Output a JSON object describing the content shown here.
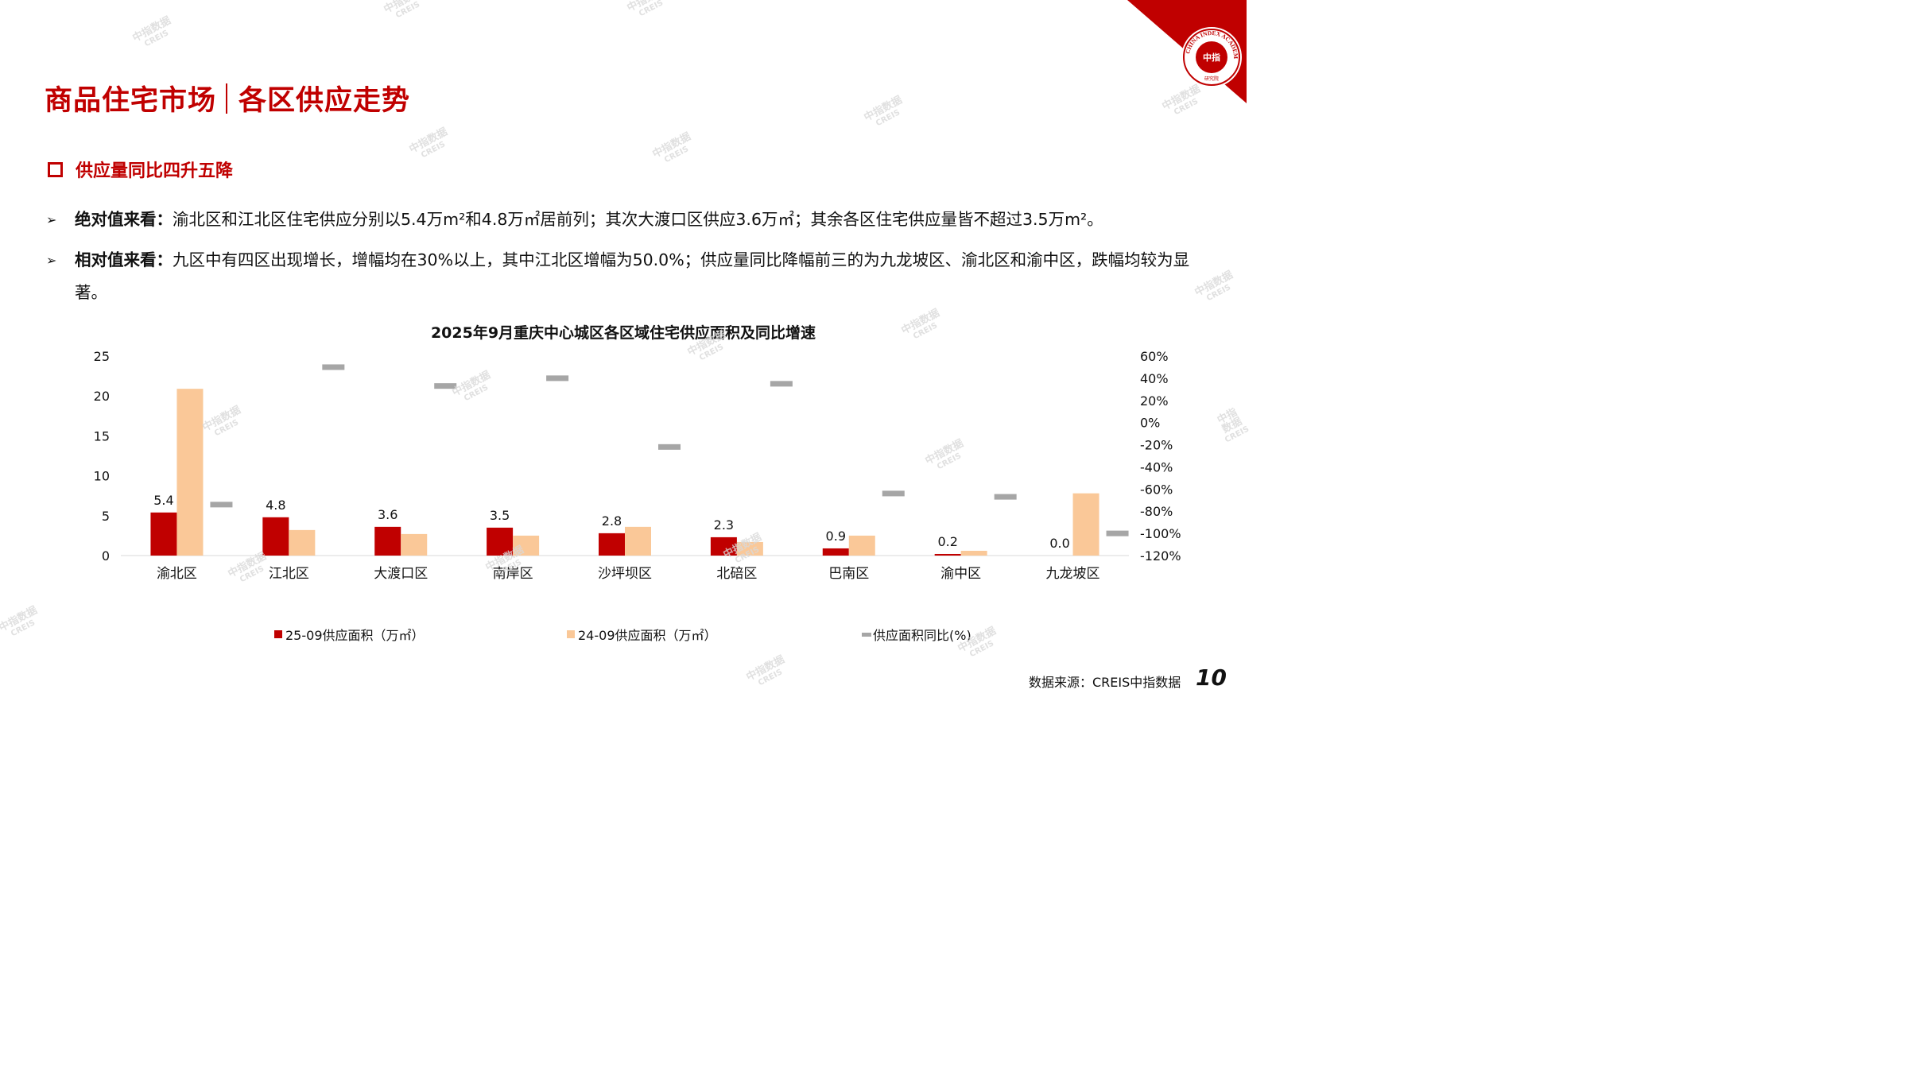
{
  "header": {
    "title_part1": "商品住宅市场",
    "title_part2": "各区供应走势",
    "logo_arc_text": "CHINA INDEX ACADEMY",
    "logo_center_text": "中指",
    "logo_bottom_text": "研究院"
  },
  "section": {
    "subtitle": "供应量同比四升五降"
  },
  "bullets": [
    {
      "label": "绝对值来看：",
      "text": "渝北区和江北区住宅供应分别以5.4万m²和4.8万㎡居前列；其次大渡口区供应3.6万㎡；其余各区住宅供应量皆不超过3.5万m²。"
    },
    {
      "label": "相对值来看：",
      "text": "九区中有四区出现增长，增幅均在30%以上，其中江北区增幅为50.0%；供应量同比降幅前三的为九龙坡区、渝北区和渝中区，跌幅均较为显著。"
    }
  ],
  "chart_data": {
    "type": "bar",
    "title": "2025年9月重庆中心城区各区域住宅供应面积及同比增速",
    "categories": [
      "渝北区",
      "江北区",
      "大渡口区",
      "南岸区",
      "沙坪坝区",
      "北碚区",
      "巴南区",
      "渝中区",
      "九龙坡区"
    ],
    "series": [
      {
        "name": "25-09供应面积（万㎡）",
        "axis": "left",
        "type": "bar",
        "color": "#c00000",
        "values": [
          5.4,
          4.8,
          3.6,
          3.5,
          2.8,
          2.3,
          0.9,
          0.2,
          0.0
        ],
        "labels": [
          "5.4",
          "4.8",
          "3.6",
          "3.5",
          "2.8",
          "2.3",
          "0.9",
          "0.2",
          "0.0"
        ]
      },
      {
        "name": "24-09供应面积（万㎡）",
        "axis": "left",
        "type": "bar",
        "color": "#fac898",
        "values": [
          20.9,
          3.2,
          2.7,
          2.5,
          3.6,
          1.7,
          2.5,
          0.6,
          7.8
        ]
      },
      {
        "name": "供应面积同比(%)",
        "axis": "right",
        "type": "dash",
        "color": "#a6a6a6",
        "values": [
          -74,
          50,
          33,
          40,
          -22,
          35,
          -64,
          -67,
          -100
        ]
      }
    ],
    "y_left": {
      "min": 0,
      "max": 25,
      "ticks": [
        "0",
        "5",
        "10",
        "15",
        "20",
        "25"
      ]
    },
    "y_right": {
      "min": -120,
      "max": 60,
      "ticks": [
        "-120%",
        "-100%",
        "-80%",
        "-60%",
        "-40%",
        "-20%",
        "0%",
        "20%",
        "40%",
        "60%"
      ]
    },
    "grid": false,
    "legend_position": "bottom"
  },
  "footer": {
    "source": "数据来源：CREIS中指数据",
    "page_number": "10"
  },
  "watermark": {
    "line1": "中指数据",
    "line2": "CREIS"
  }
}
